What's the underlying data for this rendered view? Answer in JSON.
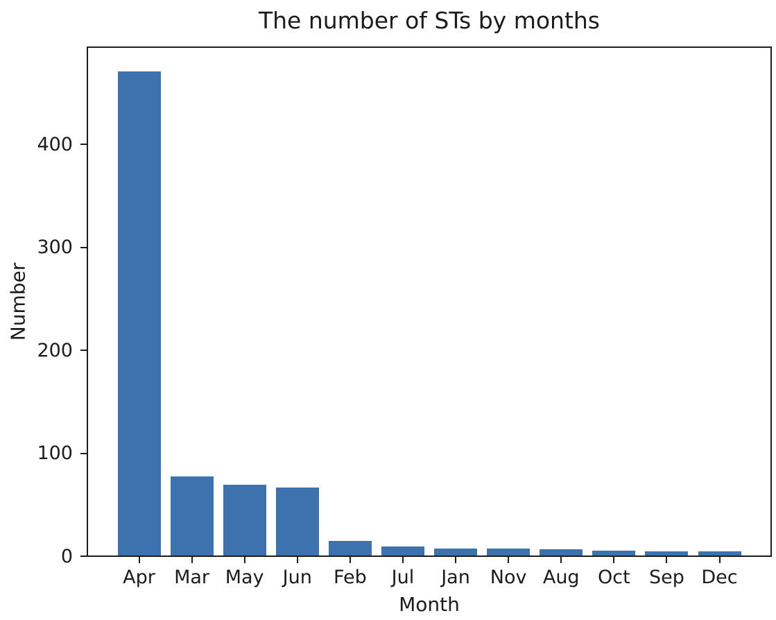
{
  "chart_data": {
    "type": "bar",
    "title": "The number of STs by months",
    "xlabel": "Month",
    "ylabel": "Number",
    "categories": [
      "Apr",
      "Mar",
      "May",
      "Jun",
      "Feb",
      "Jul",
      "Jan",
      "Nov",
      "Aug",
      "Oct",
      "Sep",
      "Dec"
    ],
    "values": [
      470,
      77,
      69,
      66,
      14,
      9,
      7,
      7,
      6,
      5,
      4,
      4
    ],
    "yticks": [
      0,
      100,
      200,
      300,
      400
    ],
    "ylim": [
      0,
      493
    ],
    "bar_color": "#3c73ae",
    "grid": false,
    "legend_position": "none",
    "background_color": "#ffffff",
    "spine_color": "#1c1c1c"
  }
}
